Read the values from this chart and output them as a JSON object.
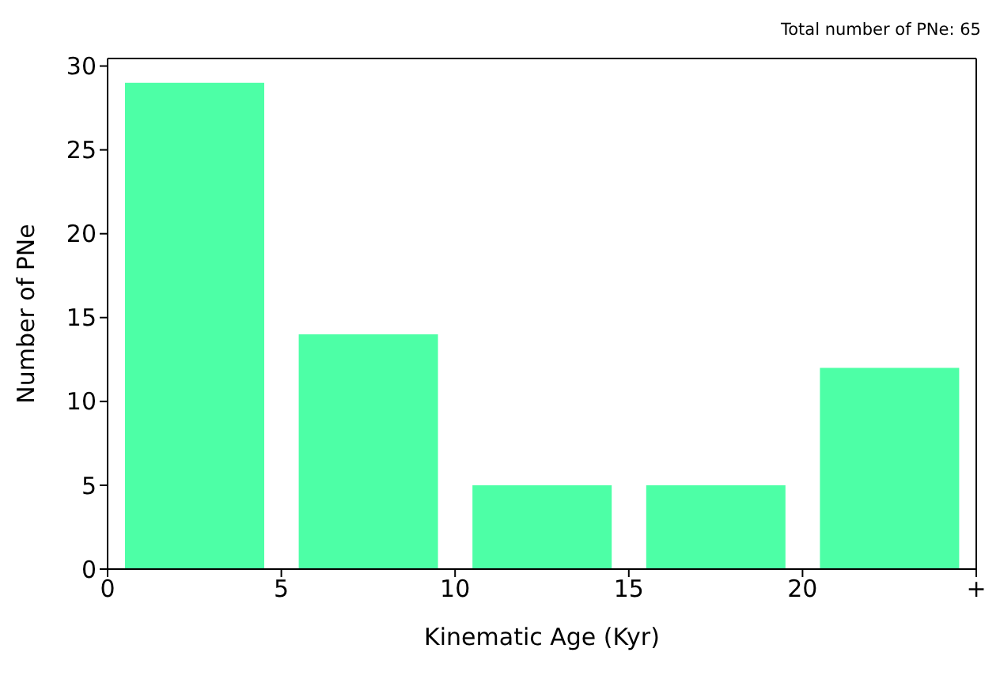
{
  "chart_data": {
    "type": "histogram",
    "bins": [
      0,
      5,
      10,
      15,
      20,
      25
    ],
    "values": [
      29,
      14,
      5,
      5,
      12
    ],
    "color": "#4dffa6",
    "xlabel": "Kinematic Age (Kyr)",
    "ylabel": "Number of PNe",
    "xlim": [
      0,
      25
    ],
    "xticks": [
      0,
      5,
      10,
      15,
      20,
      {
        "value": 25,
        "label": "+"
      }
    ],
    "ylim": [
      0,
      30.45
    ],
    "yticks": [
      0,
      5,
      10,
      15,
      20,
      25,
      30
    ],
    "annotations": [
      "Total number of PNe: 65"
    ],
    "grid": false,
    "legend": false
  }
}
